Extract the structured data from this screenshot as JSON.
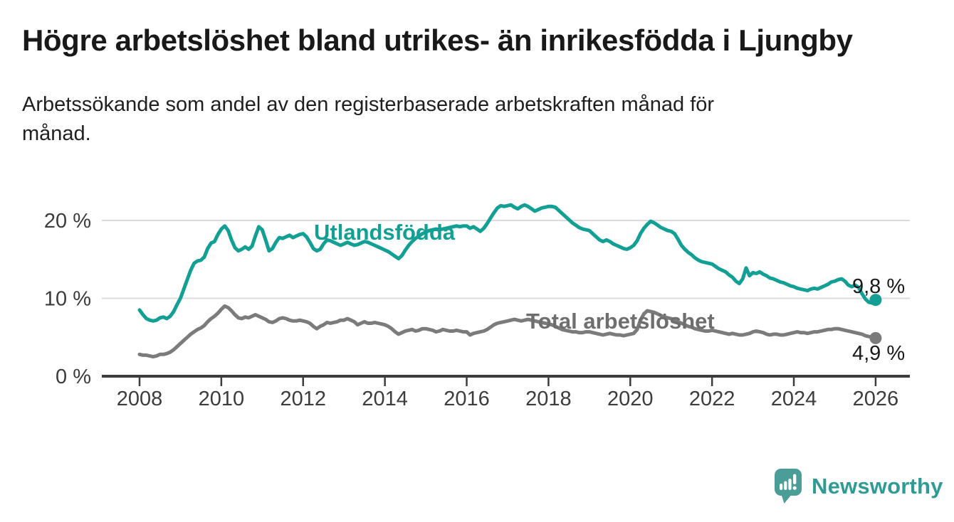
{
  "header": {
    "title": "Högre arbetslöshet bland utrikes- än inrikesfödda i Ljungby",
    "subtitle": "Arbetssökande som andel av den registerbaserade arbetskraften månad för månad.",
    "subtitle_lines": [
      "Arbetssökande som andel av den registerbaserade arbetskraften månad för",
      "månad."
    ]
  },
  "chart_data": {
    "type": "line",
    "unit": "%",
    "frequency": "monthly",
    "x_start_year": 2008,
    "x_end_year": 2026,
    "xlim": [
      2007.1,
      2026.85
    ],
    "ylim": [
      0,
      23
    ],
    "grid": "horizontal-only",
    "x_ticks": [
      2008,
      2010,
      2012,
      2014,
      2016,
      2018,
      2020,
      2022,
      2024,
      2026
    ],
    "y_ticks": [
      {
        "value": 0,
        "label": "0 %"
      },
      {
        "value": 10,
        "label": "10 %"
      },
      {
        "value": 20,
        "label": "20 %"
      }
    ],
    "colors": {
      "utlandsfodda": "#13A094",
      "total": "#7B7B7B",
      "total_label": "#6E6E6E",
      "axis": "#3C3C3C",
      "gridline": "#DBDBDB",
      "end_label_text": "#1a1a1a"
    },
    "series": [
      {
        "name": "Utlandsfödda",
        "label_text": "Utlandsfödda",
        "color": "#13A094",
        "end_label": "9,8 %",
        "end_value": 9.8,
        "values": [
          8.5,
          7.9,
          7.4,
          7.2,
          7.1,
          7.2,
          7.5,
          7.6,
          7.4,
          7.7,
          8.3,
          9.2,
          10.0,
          11.2,
          12.4,
          13.6,
          14.5,
          14.8,
          14.9,
          15.3,
          16.4,
          17.1,
          17.3,
          18.2,
          18.9,
          19.3,
          18.7,
          17.5,
          16.5,
          16.1,
          16.3,
          16.6,
          16.3,
          16.7,
          18.0,
          19.2,
          18.8,
          17.5,
          16.1,
          16.4,
          17.2,
          17.8,
          17.7,
          17.9,
          18.1,
          17.8,
          18.0,
          18.2,
          18.3,
          17.9,
          17.2,
          16.4,
          16.1,
          16.3,
          17.0,
          17.5,
          17.4,
          17.2,
          17.0,
          16.8,
          17.0,
          17.2,
          17.0,
          16.8,
          16.9,
          17.1,
          17.3,
          17.2,
          17.0,
          16.8,
          16.6,
          16.4,
          16.2,
          16.0,
          15.7,
          15.4,
          15.1,
          15.5,
          16.2,
          16.8,
          17.3,
          17.7,
          18.0,
          18.3,
          18.5,
          18.7,
          18.8,
          18.9,
          18.8,
          18.9,
          19.0,
          19.1,
          19.2,
          19.3,
          19.2,
          19.3,
          19.3,
          19.0,
          19.2,
          18.9,
          18.6,
          19.0,
          19.6,
          20.3,
          21.0,
          21.6,
          21.9,
          21.8,
          21.9,
          22.0,
          21.7,
          21.5,
          21.8,
          22.0,
          21.8,
          21.5,
          21.2,
          21.4,
          21.6,
          21.7,
          21.8,
          21.8,
          21.7,
          21.3,
          20.9,
          20.5,
          20.1,
          19.7,
          19.4,
          19.1,
          18.9,
          18.8,
          18.7,
          18.3,
          17.9,
          17.5,
          17.3,
          17.5,
          17.3,
          17.0,
          16.8,
          16.6,
          16.4,
          16.3,
          16.5,
          16.8,
          17.4,
          18.3,
          19.0,
          19.5,
          19.9,
          19.7,
          19.4,
          19.1,
          18.9,
          18.7,
          18.6,
          18.3,
          17.6,
          16.8,
          16.3,
          15.9,
          15.6,
          15.2,
          14.9,
          14.7,
          14.6,
          14.5,
          14.4,
          14.1,
          13.8,
          13.6,
          13.4,
          13.0,
          12.7,
          12.2,
          11.9,
          12.5,
          13.9,
          12.9,
          13.3,
          13.2,
          13.4,
          13.1,
          12.9,
          12.6,
          12.5,
          12.3,
          12.1,
          12.0,
          11.8,
          11.6,
          11.5,
          11.3,
          11.2,
          11.1,
          11.0,
          11.2,
          11.3,
          11.2,
          11.4,
          11.6,
          11.8,
          12.1,
          12.2,
          12.4,
          12.5,
          12.2,
          11.7,
          11.5,
          11.7,
          11.4,
          10.6,
          9.9,
          9.5,
          9.4,
          9.8
        ]
      },
      {
        "name": "Total arbetslöshet",
        "label_text": "Total arbetslöshet",
        "color": "#7B7B7B",
        "end_label": "4,9 %",
        "end_value": 4.9,
        "values": [
          2.8,
          2.7,
          2.7,
          2.6,
          2.5,
          2.6,
          2.8,
          2.8,
          2.9,
          3.1,
          3.4,
          3.8,
          4.2,
          4.6,
          5.0,
          5.4,
          5.7,
          6.0,
          6.2,
          6.5,
          7.0,
          7.4,
          7.7,
          8.1,
          8.6,
          9.0,
          8.8,
          8.4,
          7.9,
          7.5,
          7.4,
          7.6,
          7.5,
          7.7,
          7.9,
          7.7,
          7.5,
          7.3,
          7.0,
          6.9,
          7.1,
          7.4,
          7.5,
          7.4,
          7.2,
          7.1,
          7.1,
          7.2,
          7.1,
          7.0,
          6.8,
          6.4,
          6.1,
          6.4,
          6.6,
          6.9,
          6.8,
          6.9,
          7.0,
          7.2,
          7.2,
          7.4,
          7.2,
          7.0,
          6.6,
          6.8,
          7.0,
          6.8,
          6.8,
          6.9,
          6.8,
          6.7,
          6.6,
          6.4,
          6.1,
          5.7,
          5.4,
          5.6,
          5.8,
          5.9,
          6.0,
          5.8,
          5.9,
          6.1,
          6.1,
          6.0,
          5.9,
          5.7,
          5.8,
          6.0,
          5.9,
          5.8,
          5.8,
          5.9,
          5.8,
          5.7,
          5.7,
          5.3,
          5.5,
          5.6,
          5.7,
          5.8,
          6.0,
          6.3,
          6.6,
          6.8,
          6.9,
          7.0,
          7.1,
          7.2,
          7.3,
          7.2,
          7.1,
          7.2,
          7.3,
          7.2,
          7.1,
          7.0,
          6.9,
          6.8,
          6.7,
          6.6,
          6.4,
          6.2,
          6.0,
          5.9,
          5.8,
          5.7,
          5.7,
          5.6,
          5.6,
          5.7,
          5.7,
          5.6,
          5.5,
          5.4,
          5.3,
          5.4,
          5.5,
          5.4,
          5.3,
          5.3,
          5.2,
          5.3,
          5.4,
          5.5,
          6.0,
          7.2,
          8.0,
          8.4,
          8.3,
          8.2,
          8.0,
          7.8,
          7.6,
          7.5,
          7.4,
          7.2,
          7.0,
          6.8,
          6.6,
          6.4,
          6.3,
          6.1,
          6.0,
          5.9,
          5.8,
          5.8,
          5.9,
          5.8,
          5.7,
          5.6,
          5.5,
          5.4,
          5.5,
          5.4,
          5.3,
          5.3,
          5.4,
          5.5,
          5.7,
          5.8,
          5.7,
          5.6,
          5.4,
          5.3,
          5.4,
          5.4,
          5.3,
          5.3,
          5.4,
          5.5,
          5.6,
          5.7,
          5.6,
          5.6,
          5.5,
          5.6,
          5.7,
          5.7,
          5.8,
          5.9,
          6.0,
          6.0,
          6.1,
          6.1,
          6.0,
          5.9,
          5.8,
          5.7,
          5.6,
          5.5,
          5.4,
          5.2,
          5.1,
          5.0,
          4.9
        ]
      }
    ]
  },
  "footer": {
    "logo_text": "Newsworthy",
    "logo_icon": "bar-chart-speech-bubble",
    "logo_text_color": "#2E9C94",
    "logo_icon_color": "#4B9D98"
  }
}
